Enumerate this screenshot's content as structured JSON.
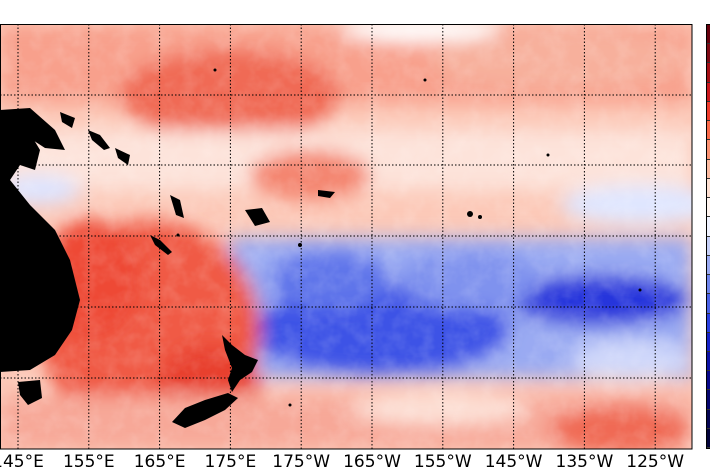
{
  "map": {
    "longitude_labels": [
      "145°E",
      "155°E",
      "165°E",
      "175°E",
      "175°W",
      "165°W",
      "155°W",
      "145°W",
      "135°W",
      "125°W"
    ],
    "colors": {
      "warm": "#ee3322",
      "cool": "#1a2ee8",
      "land": "#000000",
      "neutral": "#ffffff"
    }
  },
  "colorbar": {
    "colors": [
      "#67000d",
      "#7f0a14",
      "#a50f15",
      "#cb181d",
      "#ef3b2c",
      "#fb6a4a",
      "#fc9272",
      "#fcbba1",
      "#fee0d2",
      "#fff5f0",
      "#f0f3ff",
      "#c6d0f8",
      "#9aaaf2",
      "#6f85ec",
      "#4a62e6",
      "#2a40e0",
      "#1622c8",
      "#0c12a6",
      "#08088a",
      "#06066e",
      "#050552",
      "#03033a"
    ]
  }
}
